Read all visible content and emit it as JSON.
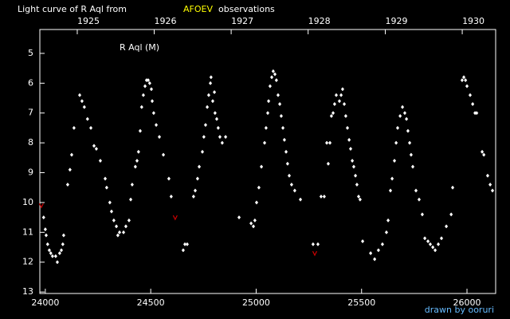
{
  "chart_data": {
    "type": "scatter",
    "title": "Light curve of R Aql from",
    "title_source": "AFOEV",
    "title_suffix": "observations",
    "star_label": "R Aql (M)",
    "credit": "drawn by ooruri",
    "xlim": [
      23974,
      26136
    ],
    "ylim": [
      13.05,
      4.2
    ],
    "xticks": [
      24000,
      24500,
      25000,
      25500,
      26000
    ],
    "yticks": [
      5,
      6,
      7,
      8,
      9,
      10,
      11,
      12,
      13
    ],
    "x2ticks": [
      {
        "value": 24151.5,
        "label": "1925"
      },
      {
        "value": 24516.5,
        "label": "1926"
      },
      {
        "value": 24881.5,
        "label": "1927"
      },
      {
        "value": 25246.5,
        "label": "1928"
      },
      {
        "value": 25612.5,
        "label": "1929"
      },
      {
        "value": 25977.5,
        "label": "1930"
      }
    ],
    "series": [
      {
        "color": "#ffffff",
        "marker": "diamond",
        "x": [
          23992,
          24000,
          24004,
          24011,
          24019,
          24026,
          24034,
          24049,
          24057,
          24068,
          24076,
          24083,
          24087,
          24106,
          24117,
          24125,
          24136,
          24163,
          24174,
          24185,
          24200,
          24216,
          24231,
          24242,
          24261,
          24284,
          24291,
          24306,
          24314,
          24325,
          24337,
          24344,
          24352,
          24371,
          24382,
          24397,
          24405,
          24412,
          24427,
          24435,
          24442,
          24450,
          24457,
          24465,
          24473,
          24480,
          24488,
          24495,
          24503,
          24507,
          24514,
          24526,
          24541,
          24560,
          24586,
          24597,
          24662,
          24654,
          24673,
          24703,
          24711,
          24722,
          24730,
          24745,
          24752,
          24760,
          24768,
          24775,
          24783,
          24786,
          24794,
          24802,
          24805,
          24813,
          24820,
          24828,
          24839,
          24855,
          24919,
          24976,
          24987,
          24994,
          25002,
          25013,
          25025,
          25040,
          25047,
          25055,
          25059,
          25066,
          25074,
          25081,
          25089,
          25096,
          25104,
          25112,
          25119,
          25127,
          25134,
          25142,
          25149,
          25157,
          25168,
          25183,
          25210,
          25270,
          25293,
          25308,
          25323,
          25335,
          25342,
          25350,
          25357,
          25365,
          25372,
          25380,
          25395,
          25403,
          25410,
          25418,
          25425,
          25433,
          25441,
          25448,
          25456,
          25463,
          25471,
          25478,
          25486,
          25493,
          25505,
          25543,
          25562,
          25580,
          25599,
          25618,
          25626,
          25637,
          25645,
          25656,
          25664,
          25671,
          25683,
          25694,
          25705,
          25713,
          25720,
          25728,
          25735,
          25743,
          25758,
          25773,
          25788,
          25800,
          25815,
          25826,
          25838,
          25849,
          25864,
          25879,
          25902,
          25925,
          25932,
          25977,
          25985,
          25993,
          26000,
          26015,
          26027,
          26038,
          26046,
          26072,
          26080,
          26098,
          26110,
          26121
        ],
        "y": [
          10.5,
          10.9,
          11.1,
          11.4,
          11.6,
          11.7,
          11.8,
          11.8,
          12.0,
          11.7,
          11.6,
          11.4,
          11.1,
          9.4,
          8.9,
          8.4,
          7.5,
          6.4,
          6.6,
          6.8,
          7.2,
          7.5,
          8.1,
          8.2,
          8.6,
          9.2,
          9.5,
          10.0,
          10.3,
          10.6,
          10.8,
          11.1,
          11.0,
          11.0,
          10.8,
          10.6,
          9.9,
          9.4,
          8.8,
          8.6,
          8.3,
          7.6,
          6.8,
          6.4,
          6.1,
          5.9,
          5.9,
          6.0,
          6.2,
          6.6,
          7.0,
          7.4,
          7.8,
          8.4,
          9.2,
          9.8,
          11.4,
          11.6,
          11.4,
          9.8,
          9.6,
          9.2,
          8.8,
          8.3,
          7.8,
          7.4,
          6.8,
          6.4,
          6.0,
          5.8,
          6.6,
          6.3,
          7.0,
          7.2,
          7.5,
          7.8,
          8.0,
          7.8,
          10.5,
          10.7,
          10.8,
          10.6,
          10.0,
          9.5,
          8.8,
          8.0,
          7.5,
          7.0,
          6.6,
          6.1,
          5.8,
          5.6,
          5.7,
          5.9,
          6.4,
          6.7,
          7.1,
          7.5,
          7.9,
          8.3,
          8.7,
          9.1,
          9.4,
          9.6,
          9.9,
          11.4,
          11.4,
          9.8,
          9.8,
          8.0,
          8.7,
          8.0,
          7.1,
          7.0,
          6.7,
          6.4,
          6.6,
          6.4,
          6.2,
          6.7,
          7.1,
          7.5,
          7.9,
          8.2,
          8.6,
          8.8,
          9.1,
          9.4,
          9.8,
          9.9,
          11.3,
          11.7,
          11.9,
          11.6,
          11.4,
          11.0,
          10.6,
          9.6,
          9.2,
          8.6,
          8.0,
          7.5,
          7.1,
          6.8,
          7.0,
          7.2,
          7.6,
          8.0,
          8.4,
          8.8,
          9.6,
          9.9,
          10.4,
          11.2,
          11.3,
          11.4,
          11.5,
          11.6,
          11.4,
          11.2,
          10.8,
          10.4,
          9.5,
          5.9,
          5.8,
          5.9,
          6.1,
          6.4,
          6.7,
          7.0,
          7.0,
          8.3,
          8.4,
          9.1,
          9.4,
          9.6
        ]
      },
      {
        "color": "#cc0000",
        "marker": "vee",
        "x": [
          23981,
          24616,
          25278
        ],
        "y": [
          10.1,
          10.5,
          11.7
        ]
      }
    ]
  }
}
